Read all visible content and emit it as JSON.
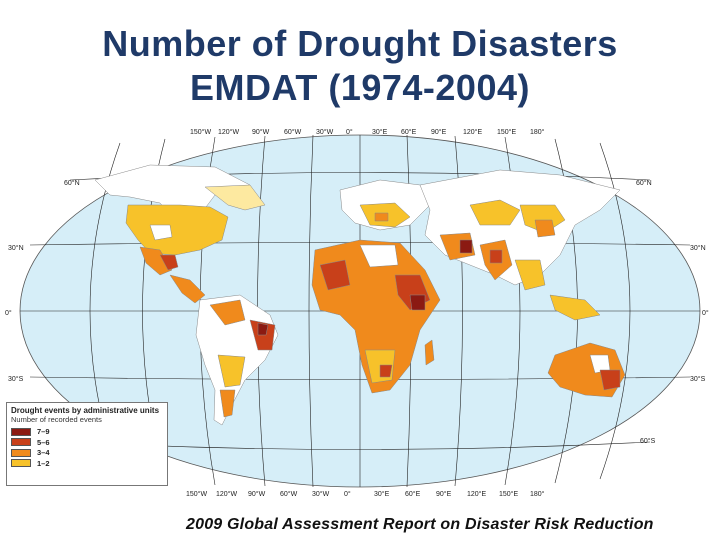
{
  "title": {
    "line1": "Number of Drought Disasters",
    "line2": "EMDAT (1974-2004)"
  },
  "caption": "2009 Global Assessment Report on Disaster Risk Reduction",
  "map": {
    "top_ticks": [
      "150°W",
      "120°W",
      "90°W",
      "60°W",
      "30°W",
      "0°",
      "30°E",
      "60°E",
      "90°E",
      "120°E",
      "150°E",
      "180°"
    ],
    "bottom_ticks": [
      "150°W",
      "120°W",
      "90°W",
      "60°W",
      "30°W",
      "0°",
      "30°E",
      "60°E",
      "90°E",
      "120°E",
      "150°E",
      "180°"
    ],
    "lat_labels_left": [
      "60°N",
      "30°N",
      "0°",
      "30°S"
    ],
    "lat_labels_right": [
      "60°N",
      "30°N",
      "0°",
      "30°S",
      "60°S"
    ],
    "ocean_color": "#d6eef8",
    "land_color": "#ffffff"
  },
  "legend": {
    "title": "Drought events by administrative units",
    "subtitle": "Number of recorded events",
    "items": [
      {
        "label": "7–9",
        "color": "#8b1a12"
      },
      {
        "label": "5–6",
        "color": "#c8401a"
      },
      {
        "label": "3–4",
        "color": "#f08a1c"
      },
      {
        "label": "1–2",
        "color": "#f7c22a"
      }
    ]
  }
}
